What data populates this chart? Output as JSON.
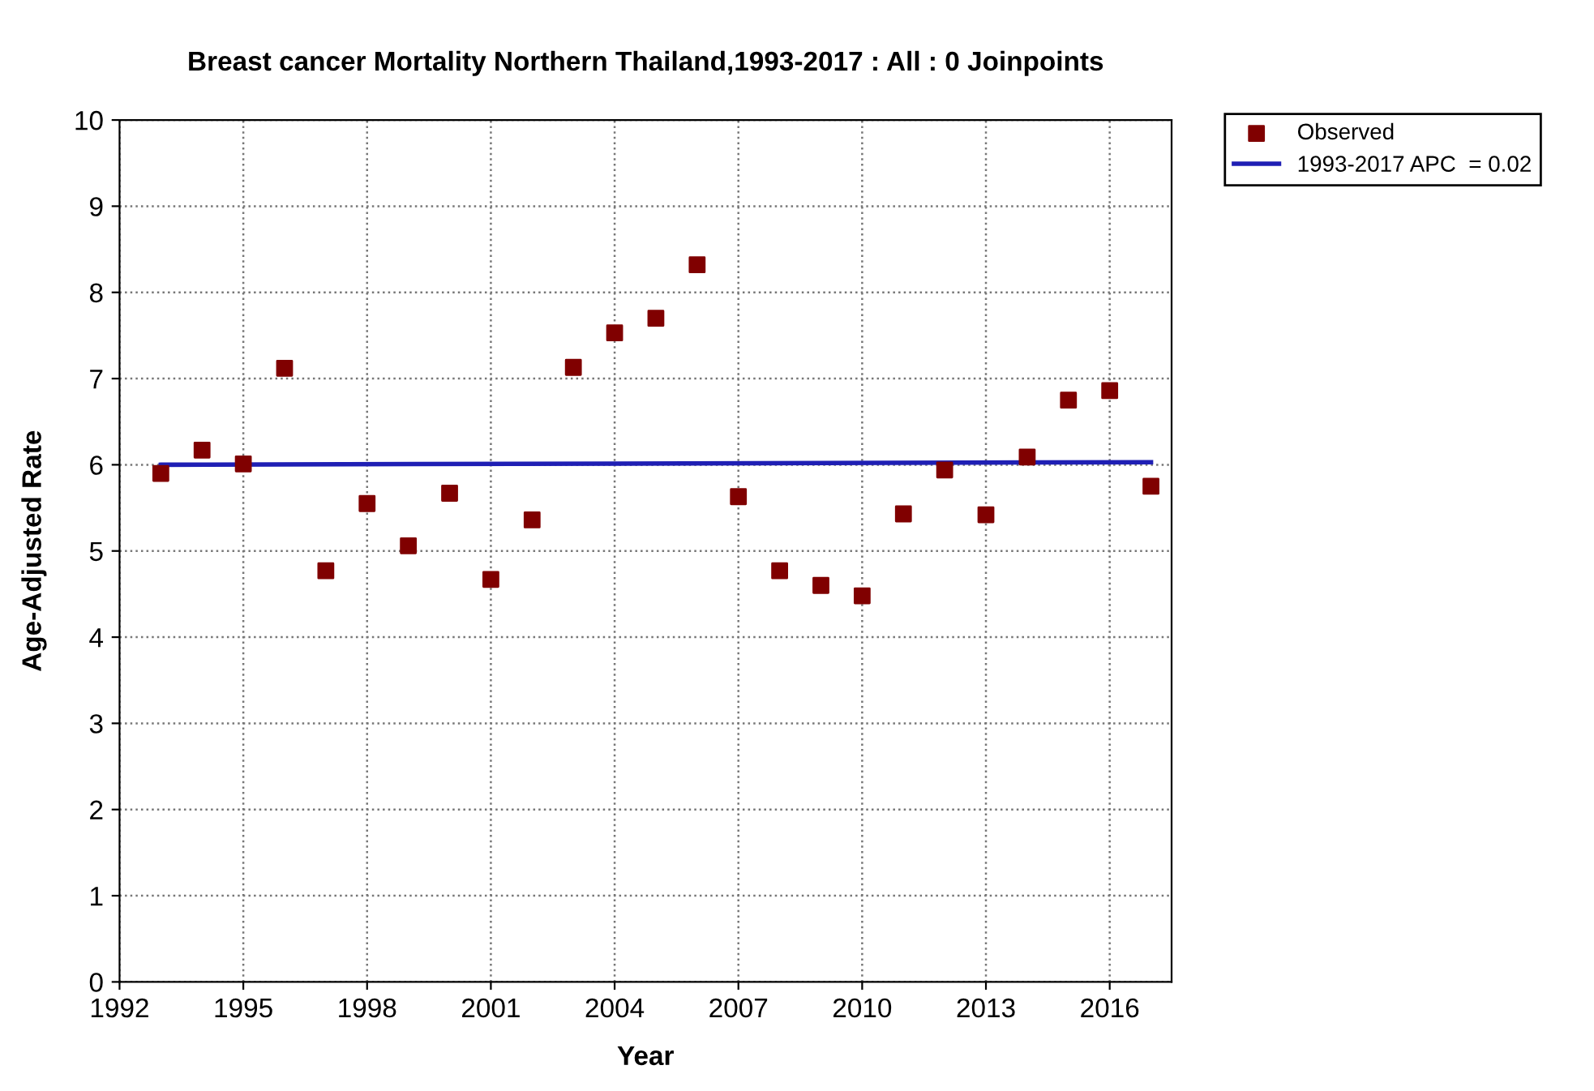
{
  "chart_data": {
    "type": "scatter",
    "title": "Breast cancer Mortality Northern Thailand,1993-2017 : All : 0 Joinpoints",
    "xlabel": "Year",
    "ylabel": "Age-Adjusted Rate",
    "x": [
      1993,
      1994,
      1995,
      1996,
      1997,
      1998,
      1999,
      2000,
      2001,
      2002,
      2003,
      2004,
      2005,
      2006,
      2007,
      2008,
      2009,
      2010,
      2011,
      2012,
      2013,
      2014,
      2015,
      2016,
      2017
    ],
    "series": [
      {
        "name": "Observed",
        "marker": "square",
        "color": "#800000",
        "values": [
          5.9,
          6.17,
          6.01,
          7.12,
          4.77,
          5.55,
          5.06,
          5.67,
          4.67,
          5.36,
          7.13,
          7.53,
          7.7,
          8.32,
          5.63,
          4.77,
          4.6,
          4.48,
          5.43,
          5.94,
          5.42,
          6.09,
          6.75,
          6.86,
          5.75
        ]
      },
      {
        "name": "1993-2017 APC  = 0.02",
        "type": "line",
        "marker": "none",
        "line_style": "solid",
        "color": "#1f1fb4",
        "x": [
          1993,
          2017
        ],
        "values": [
          6.0,
          6.03
        ]
      }
    ],
    "xlim": [
      1992,
      2017.5
    ],
    "xticks": [
      1992,
      1995,
      1998,
      2001,
      2004,
      2007,
      2010,
      2013,
      2016
    ],
    "ylim": [
      0,
      10
    ],
    "yticks": [
      0,
      1,
      2,
      3,
      4,
      5,
      6,
      7,
      8,
      9,
      10
    ],
    "grid": true,
    "legend": "top right"
  }
}
